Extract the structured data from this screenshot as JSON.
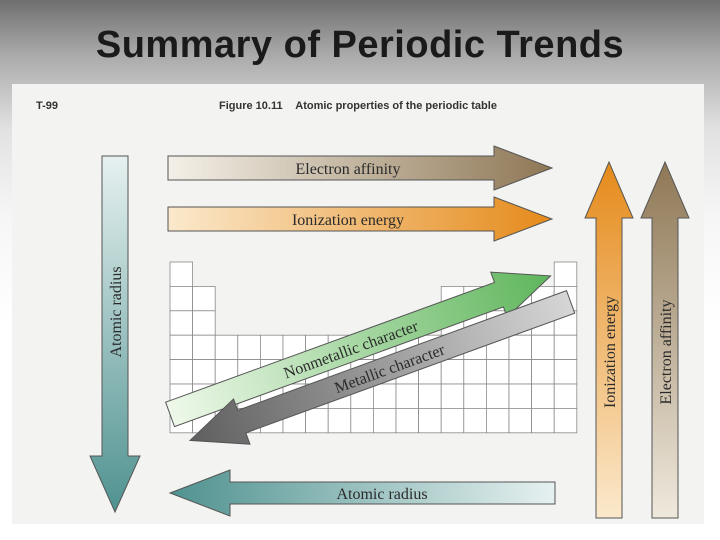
{
  "slide": {
    "title": "Summary of Periodic Trends"
  },
  "figure": {
    "id": "T-99",
    "number": "Figure 10.11",
    "caption": "Atomic properties of the periodic table"
  },
  "arrows": {
    "electron_affinity_horizontal": {
      "label": "Electron affinity",
      "color": "#a08a66"
    },
    "ionization_energy_horizontal": {
      "label": "Ionization energy",
      "color": "#e8962e"
    },
    "atomic_radius_vertical": {
      "label": "Atomic radius",
      "color": "#5f9e9c"
    },
    "atomic_radius_horizontal": {
      "label": "Atomic radius",
      "color": "#5f9e9c"
    },
    "ionization_energy_vertical": {
      "label": "Ionization energy",
      "color": "#e8962e"
    },
    "electron_affinity_vertical": {
      "label": "Electron affinity",
      "color": "#a08a66"
    },
    "nonmetallic_character": {
      "label": "Nonmetallic character",
      "color": "#6dbf6a"
    },
    "metallic_character": {
      "label": "Metallic character",
      "color": "#707070"
    }
  }
}
